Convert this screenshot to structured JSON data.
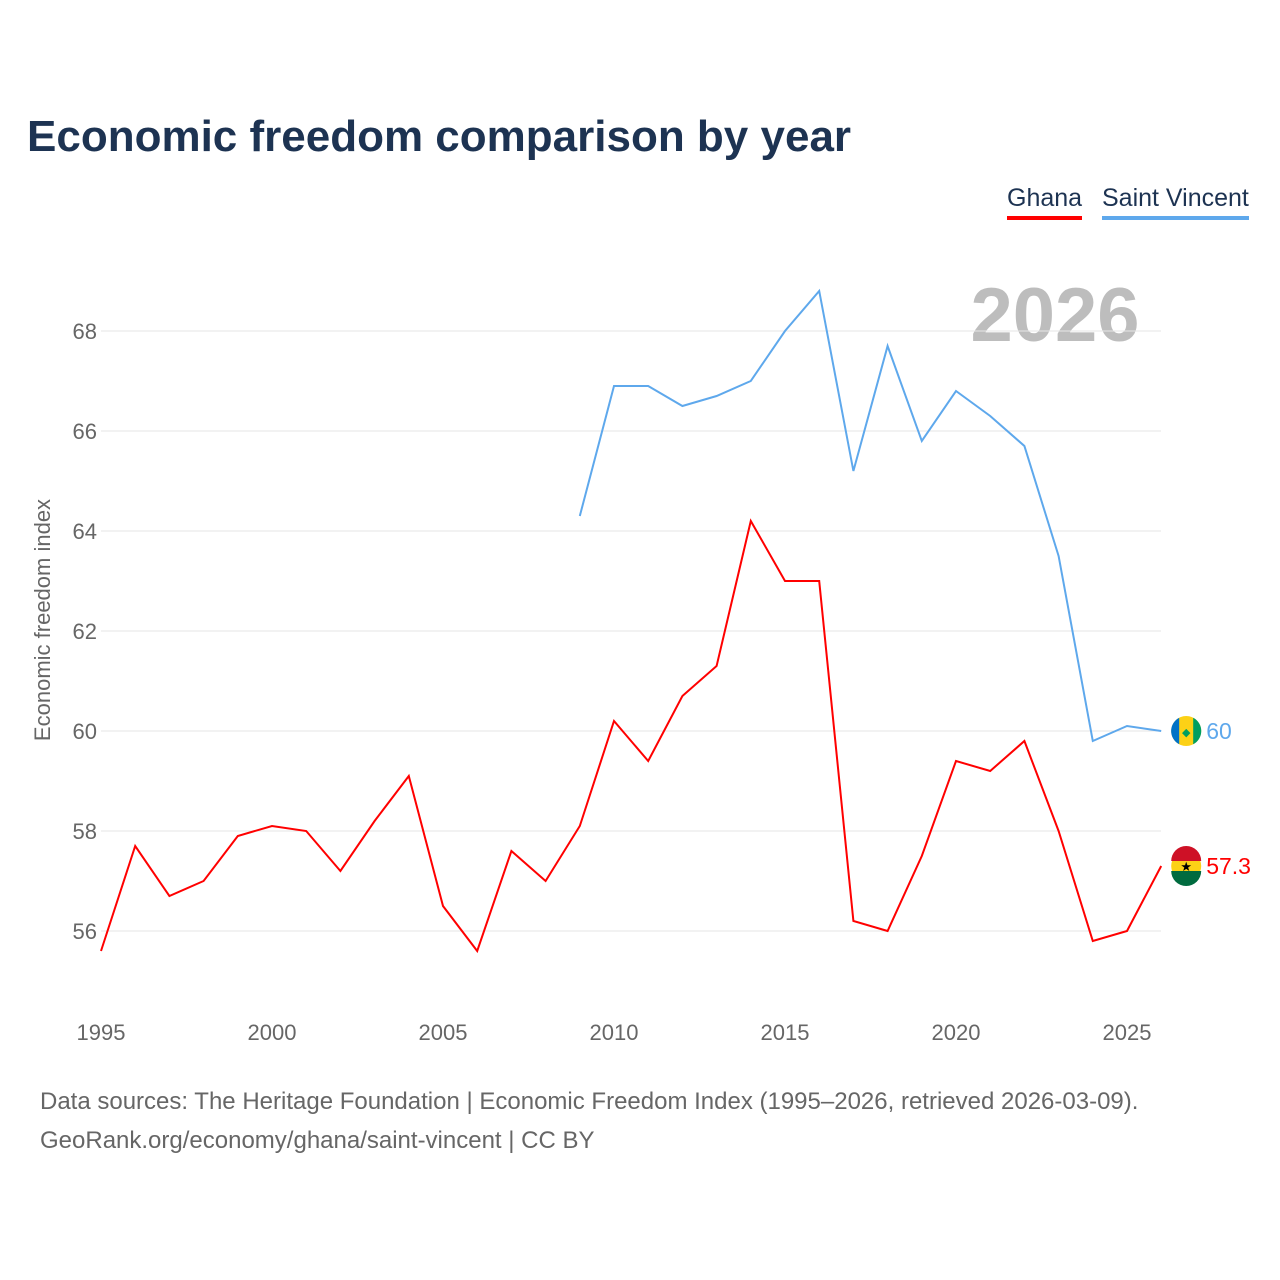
{
  "title": "Economic freedom comparison by year",
  "watermark_year": "2026",
  "footer": {
    "line1": "Data sources: The Heritage Foundation | Economic Freedom Index (1995–2026, retrieved 2026-03-09).",
    "line2": "GeoRank.org/economy/ghana/saint-vincent | CC BY"
  },
  "chart_data": {
    "type": "line",
    "title": "Economic freedom comparison by year",
    "xlabel": "",
    "ylabel": "Economic freedom index",
    "xlim": [
      1995,
      2026
    ],
    "ylim": [
      54.8,
      69.5
    ],
    "xticks": [
      "1995",
      "2000",
      "2005",
      "2010",
      "2015",
      "2020",
      "2025"
    ],
    "yticks": [
      "56",
      "58",
      "60",
      "62",
      "64",
      "66",
      "68"
    ],
    "grid": true,
    "legend": "top-right",
    "series": [
      {
        "name": "Ghana",
        "color": "#ff0000",
        "end_label": "57.3",
        "icon": "ghana-flag-icon",
        "x": [
          1995,
          1996,
          1997,
          1998,
          1999,
          2000,
          2001,
          2002,
          2003,
          2004,
          2005,
          2006,
          2007,
          2008,
          2009,
          2010,
          2011,
          2012,
          2013,
          2014,
          2015,
          2016,
          2017,
          2018,
          2019,
          2020,
          2021,
          2022,
          2023,
          2024,
          2025,
          2026
        ],
        "values": [
          55.6,
          57.7,
          56.7,
          57.0,
          57.9,
          58.1,
          58.0,
          57.2,
          58.2,
          59.1,
          56.5,
          55.6,
          57.6,
          57.0,
          58.1,
          60.2,
          59.4,
          60.7,
          61.3,
          64.2,
          63.0,
          63.0,
          56.2,
          56.0,
          57.5,
          59.4,
          59.2,
          59.8,
          58.0,
          55.8,
          56.0,
          57.3
        ]
      },
      {
        "name": "Saint Vincent",
        "color": "#5ea8ec",
        "end_label": "60",
        "icon": "saint-vincent-flag-icon",
        "x": [
          2009,
          2010,
          2011,
          2012,
          2013,
          2014,
          2015,
          2016,
          2017,
          2018,
          2019,
          2020,
          2021,
          2022,
          2023,
          2024,
          2025,
          2026
        ],
        "values": [
          64.3,
          66.9,
          66.9,
          66.5,
          66.7,
          67.0,
          68.0,
          68.8,
          65.2,
          67.7,
          65.8,
          66.8,
          66.3,
          65.7,
          63.5,
          59.8,
          60.1,
          60.0
        ]
      }
    ]
  }
}
